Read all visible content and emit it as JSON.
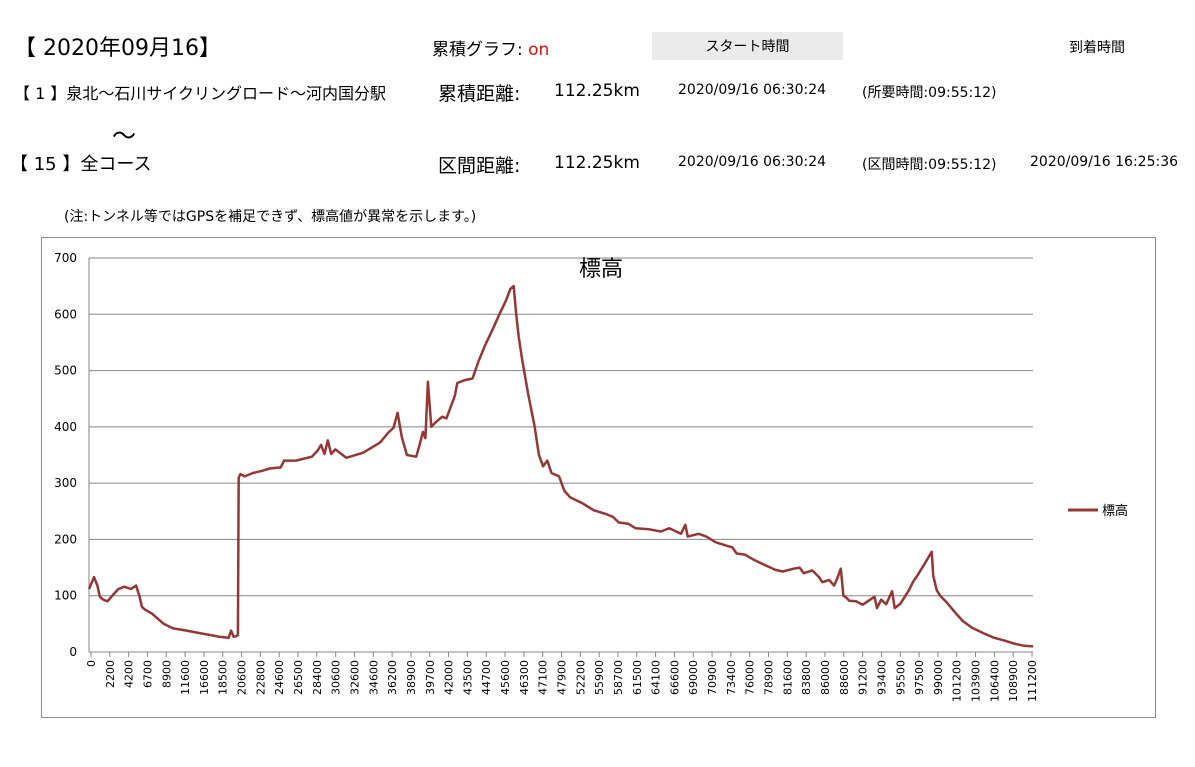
{
  "header": {
    "date": "【 2020年09月16】",
    "graph_label": "累積グラフ:",
    "graph_state": "on",
    "start_button": "スタート時間",
    "arrival_label": "到着時間"
  },
  "route": {
    "from": "【 1 】泉北～石川サイクリングロード～河内国分駅",
    "tilde": "～",
    "to": "【 15 】全コース"
  },
  "stats": {
    "cumulative_label": "累積距離:",
    "cumulative_value": "112.25km",
    "cumulative_start": "2020/09/16 06:30:24",
    "cumulative_elapsed": "(所要時間:09:55:12)",
    "section_label": "区間距離:",
    "section_value": "112.25km",
    "section_start": "2020/09/16 06:30:24",
    "section_elapsed": "(区間時間:09:55:12)",
    "section_arrival": "2020/09/16 16:25:36"
  },
  "note": "(注:トンネル等ではGPSを補足できず、標高値が異常を示します。)",
  "colors": {
    "series": "#953735",
    "accent_on": "#e01010"
  },
  "chart_data": {
    "type": "line",
    "title": "標高",
    "xlabel": "",
    "ylabel": "",
    "ylim": [
      0,
      700
    ],
    "yticks": [
      0,
      100,
      200,
      300,
      400,
      500,
      600,
      700
    ],
    "xlim": [
      0,
      112250
    ],
    "x_tick_labels": [
      "0",
      "2200",
      "4200",
      "6700",
      "8900",
      "11600",
      "16600",
      "18500",
      "20600",
      "22800",
      "24600",
      "26500",
      "28400",
      "30600",
      "32600",
      "34600",
      "36200",
      "38900",
      "39700",
      "42000",
      "43500",
      "44700",
      "45600",
      "46300",
      "47100",
      "47900",
      "52200",
      "55900",
      "58700",
      "61500",
      "64100",
      "66600",
      "69000",
      "70900",
      "73400",
      "76000",
      "78900",
      "81600",
      "83800",
      "86000",
      "88600",
      "91200",
      "93400",
      "95500",
      "97500",
      "99000",
      "101200",
      "103900",
      "106400",
      "108900",
      "111200"
    ],
    "grid": "horizontal",
    "legend_position": "right",
    "series": [
      {
        "name": "標高",
        "x": [
          0,
          600,
          1000,
          1300,
          1700,
          2200,
          3000,
          3500,
          4200,
          5000,
          5600,
          6000,
          6300,
          6700,
          7500,
          8900,
          10000,
          11600,
          13000,
          14500,
          15500,
          16200,
          16600,
          16900,
          17200,
          17500,
          17700,
          17800,
          18000,
          18500,
          19500,
          20600,
          21500,
          22800,
          23200,
          24600,
          26500,
          27200,
          27600,
          28000,
          28400,
          28800,
          29300,
          30600,
          32600,
          34600,
          35600,
          36200,
          36700,
          37200,
          37800,
          38900,
          39200,
          39700,
          40000,
          40300,
          40700,
          41200,
          42000,
          42500,
          43500,
          43800,
          44700,
          45600,
          46300,
          47100,
          47900,
          48800,
          49600,
          50100,
          50500,
          50800,
          51100,
          51500,
          52200,
          53000,
          53500,
          54000,
          54500,
          55000,
          55900,
          56500,
          57200,
          58700,
          60000,
          61500,
          62300,
          63000,
          64100,
          65000,
          66600,
          68000,
          69000,
          70400,
          70900,
          71200,
          72500,
          73400,
          74500,
          76000,
          76500,
          77000,
          78000,
          78900,
          80000,
          81600,
          82500,
          83800,
          84500,
          85000,
          86000,
          86800,
          87200,
          88000,
          88600,
          89000,
          89400,
          89700,
          90100,
          90400,
          91200,
          92000,
          93400,
          93700,
          94200,
          94800,
          95500,
          95800,
          96500,
          97500,
          98000,
          98500,
          99000,
          99500,
          100200,
          100400,
          100800,
          101200,
          102000,
          103000,
          103900,
          105000,
          106400,
          107500,
          108900,
          110000,
          111200,
          112250
        ],
        "y": [
          112,
          133,
          118,
          98,
          93,
          90,
          104,
          112,
          116,
          112,
          118,
          99,
          80,
          75,
          68,
          50,
          42,
          38,
          34,
          30,
          27,
          26,
          25,
          38,
          27,
          28,
          30,
          310,
          316,
          312,
          318,
          322,
          326,
          328,
          340,
          340,
          347,
          358,
          368,
          352,
          376,
          352,
          360,
          345,
          354,
          372,
          390,
          398,
          425,
          382,
          350,
          347,
          362,
          391,
          380,
          480,
          400,
          408,
          418,
          415,
          455,
          478,
          483,
          486,
          516,
          545,
          570,
          600,
          625,
          645,
          650,
          600,
          560,
          520,
          460,
          400,
          350,
          330,
          340,
          318,
          312,
          287,
          275,
          264,
          252,
          245,
          240,
          230,
          228,
          220,
          218,
          214,
          220,
          210,
          226,
          205,
          210,
          205,
          195,
          188,
          186,
          175,
          173,
          165,
          157,
          146,
          143,
          148,
          150,
          140,
          145,
          133,
          124,
          128,
          118,
          132,
          148,
          100,
          96,
          91,
          90,
          84,
          98,
          78,
          93,
          85,
          108,
          78,
          86,
          110,
          125,
          136,
          148,
          160,
          178,
          135,
          110,
          100,
          88,
          70,
          55,
          43,
          33,
          26,
          20,
          15,
          11,
          10
        ]
      }
    ]
  }
}
